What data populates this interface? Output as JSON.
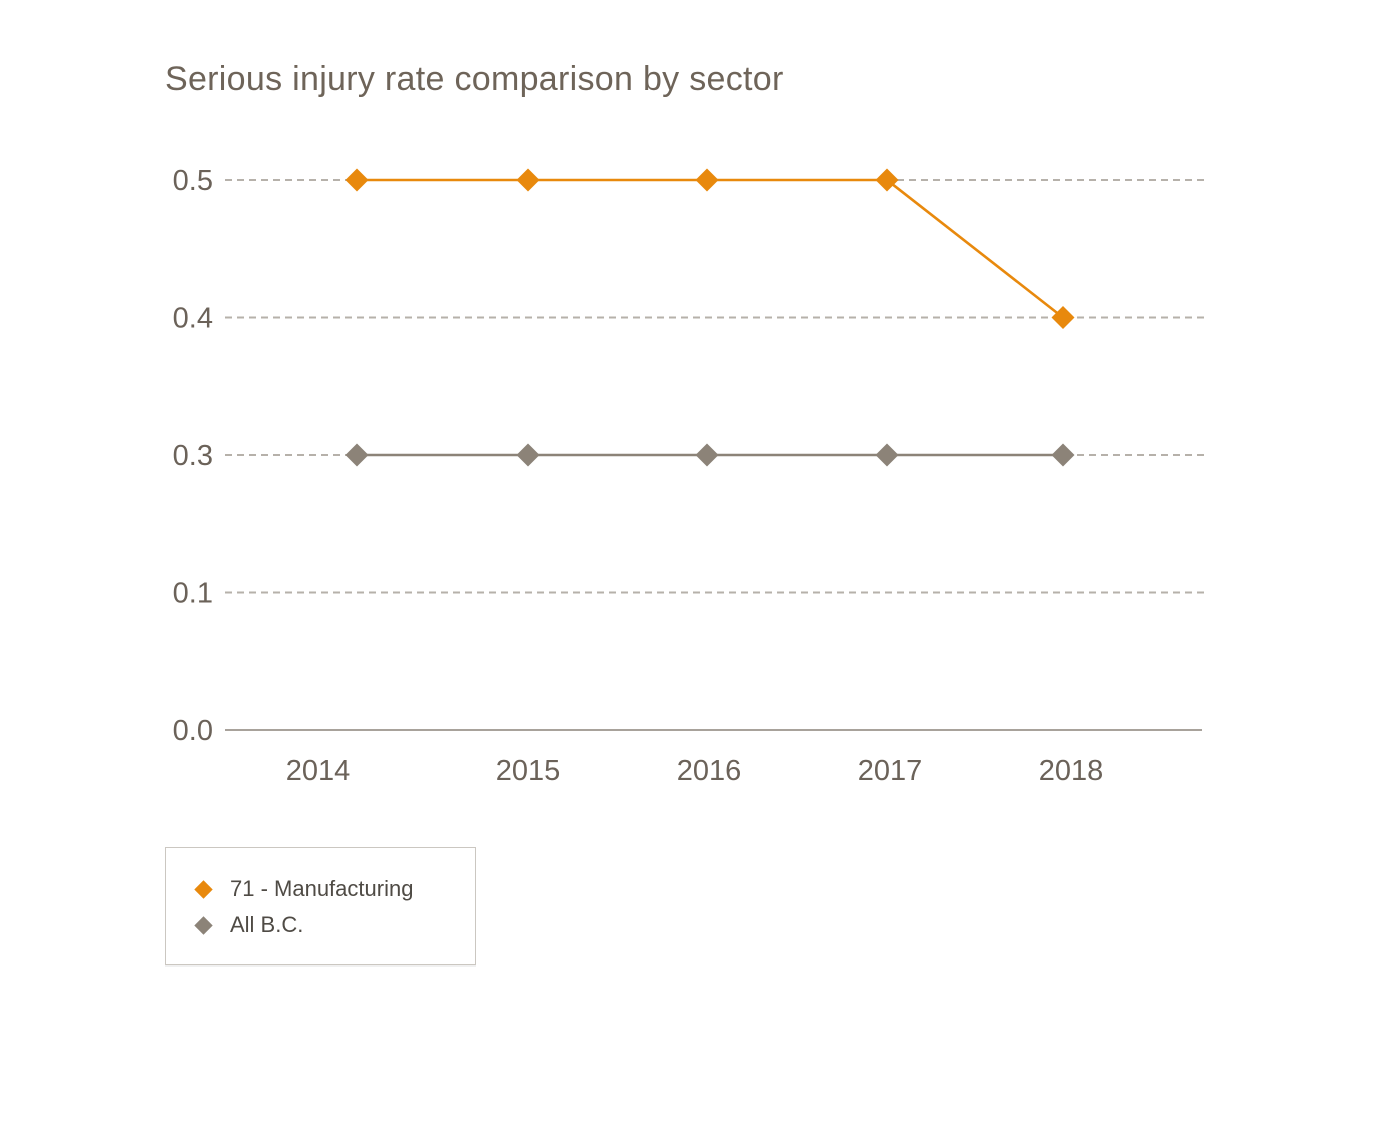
{
  "title": "Serious injury rate comparison by sector",
  "chart_data": {
    "type": "line",
    "title": "Serious injury rate comparison by sector",
    "x": [
      "2014",
      "2015",
      "2016",
      "2017",
      "2018"
    ],
    "x_tick_labels": [
      "2014",
      "2015",
      "2016",
      "2017",
      "2018"
    ],
    "y_tick_labels": [
      "0.5",
      "0.4",
      "0.3",
      "0.1",
      "0.0"
    ],
    "series": [
      {
        "name": "71 - Manufacturing",
        "color": "#E8890D",
        "marker": "diamond",
        "values": [
          0.5,
          0.5,
          0.5,
          0.5,
          0.4
        ]
      },
      {
        "name": "All B.C.",
        "color": "#8C8378",
        "marker": "diamond",
        "values": [
          0.3,
          0.3,
          0.3,
          0.3,
          0.3
        ]
      }
    ],
    "xlabel": "",
    "ylabel": "",
    "grid": "horizontal-dashed",
    "legend_position": "bottom-left",
    "colors": {
      "gridline": "#B6B1AA",
      "axis_line": "#A8A29B",
      "tick_label": "#6B6259",
      "title": "#6E6459"
    }
  },
  "legend": {
    "items": [
      {
        "label": "71 - Manufacturing",
        "color": "#E8890D"
      },
      {
        "label": "All B.C.",
        "color": "#8C8378"
      }
    ]
  }
}
